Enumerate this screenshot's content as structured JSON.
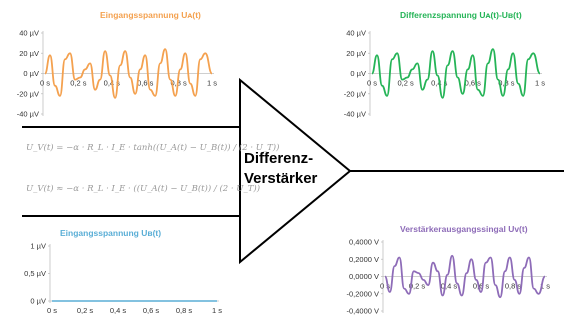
{
  "amplifier": {
    "label_line1": "Differenz-",
    "label_line2": "Verstärker"
  },
  "formulas": [
    "U_V(t) = −α · R_L · I_E · tanh((U_A(t) − U_B(t)) / (2 · U_T))",
    "U_V(t) ≈ −α · R_L · I_E · ((U_A(t) − U_B(t)) / (2 · U_T))"
  ],
  "colors": {
    "input_a": "#f4a14f",
    "input_b": "#5aaed6",
    "difference": "#25b457",
    "output": "#8e6cb8",
    "wire": "#000000",
    "formula_text": "#9a9a9a"
  },
  "chart_data": [
    {
      "id": "input-a",
      "type": "line",
      "title": "Eingangsspannung Uᴀ(t)",
      "x_ticks": [
        "0 s",
        "0,2 s",
        "0,4 s",
        "0,6 s",
        "0,8 s",
        "1 s"
      ],
      "y_ticks": [
        "40 µV",
        "20 µV",
        "0 µV",
        "-20 µV",
        "-40 µV"
      ],
      "xlim": [
        0,
        1
      ],
      "ylim": [
        -40,
        40
      ],
      "unit": "µV",
      "series": [
        {
          "x": [
            0,
            0.03,
            0.06,
            0.09,
            0.12,
            0.15,
            0.18,
            0.21,
            0.24,
            0.27,
            0.3,
            0.33,
            0.36,
            0.39,
            0.42,
            0.45,
            0.48,
            0.51,
            0.54,
            0.57,
            0.6,
            0.63,
            0.66,
            0.69,
            0.72,
            0.75,
            0.78,
            0.81,
            0.84,
            0.87,
            0.9,
            0.93,
            0.96,
            1.0
          ],
          "values": [
            0,
            18,
            -12,
            -22,
            14,
            20,
            -6,
            -4,
            4,
            10,
            -16,
            -6,
            22,
            -2,
            -24,
            8,
            22,
            -4,
            -20,
            4,
            18,
            -16,
            -22,
            10,
            24,
            -6,
            -22,
            4,
            20,
            -10,
            -22,
            14,
            20,
            0
          ]
        }
      ]
    },
    {
      "id": "difference",
      "type": "line",
      "title": "Differenzspannung Uᴀ(t)-Uʙ(t)",
      "x_ticks": [
        "0 s",
        "0,2 s",
        "0,4 s",
        "0,6 s",
        "0,8 s",
        "1 s"
      ],
      "y_ticks": [
        "40 µV",
        "20 µV",
        "0 µV",
        "-20 µV",
        "-40 µV"
      ],
      "xlim": [
        0,
        1
      ],
      "ylim": [
        -40,
        40
      ],
      "unit": "µV",
      "series": [
        {
          "x": [
            0,
            0.03,
            0.06,
            0.09,
            0.12,
            0.15,
            0.18,
            0.21,
            0.24,
            0.27,
            0.3,
            0.33,
            0.36,
            0.39,
            0.42,
            0.45,
            0.48,
            0.51,
            0.54,
            0.57,
            0.6,
            0.63,
            0.66,
            0.69,
            0.72,
            0.75,
            0.78,
            0.81,
            0.84,
            0.87,
            0.9,
            0.93,
            0.96,
            1.0
          ],
          "values": [
            0,
            18,
            -12,
            -22,
            14,
            20,
            -6,
            -4,
            4,
            10,
            -16,
            -6,
            22,
            -2,
            -24,
            8,
            22,
            -4,
            -20,
            4,
            18,
            -16,
            -22,
            10,
            24,
            -6,
            -22,
            4,
            20,
            -10,
            -22,
            14,
            20,
            0
          ]
        }
      ]
    },
    {
      "id": "input-b",
      "type": "line",
      "title": "Eingangsspannung Uʙ(t)",
      "x_ticks": [
        "0 s",
        "0,2 s",
        "0,4 s",
        "0,6 s",
        "0,8 s",
        "1 s"
      ],
      "y_ticks": [
        "1 µV",
        "0,5 µV",
        "0 µV"
      ],
      "xlim": [
        0,
        1
      ],
      "ylim": [
        0,
        1
      ],
      "unit": "µV",
      "series": [
        {
          "x": [
            0,
            1
          ],
          "values": [
            0,
            0
          ]
        }
      ]
    },
    {
      "id": "output",
      "type": "line",
      "title": "Verstärkerausgangssingal Uv(t)",
      "x_ticks": [
        "0 s",
        "0,2 s",
        "0,4 s",
        "0,6 s",
        "0,8 s",
        "1 s"
      ],
      "y_ticks": [
        "0,4000 V",
        "0,2000 V",
        "0,0000 V",
        "-0,2000 V",
        "-0,4000 V"
      ],
      "xlim": [
        0,
        1
      ],
      "ylim": [
        -0.4,
        0.4
      ],
      "unit": "V",
      "series": [
        {
          "x": [
            0,
            0.03,
            0.06,
            0.09,
            0.12,
            0.15,
            0.18,
            0.21,
            0.24,
            0.27,
            0.3,
            0.33,
            0.36,
            0.39,
            0.42,
            0.45,
            0.48,
            0.51,
            0.54,
            0.57,
            0.6,
            0.63,
            0.66,
            0.69,
            0.72,
            0.75,
            0.78,
            0.81,
            0.84,
            0.87,
            0.9,
            0.93,
            0.96,
            1.0
          ],
          "values": [
            0,
            -0.18,
            0.12,
            0.22,
            -0.14,
            -0.2,
            0.06,
            0.04,
            -0.04,
            -0.1,
            0.16,
            0.06,
            -0.22,
            0.02,
            0.24,
            -0.08,
            -0.22,
            0.04,
            0.2,
            -0.04,
            -0.18,
            0.16,
            0.22,
            -0.1,
            -0.24,
            0.06,
            0.22,
            -0.04,
            -0.2,
            0.1,
            0.22,
            -0.14,
            -0.2,
            0
          ]
        }
      ]
    }
  ]
}
